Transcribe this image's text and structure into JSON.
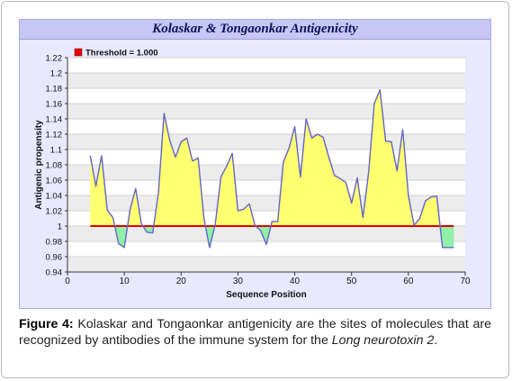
{
  "chart_data": {
    "type": "area",
    "title": "Kolaskar & Tongaonkar  Antigenicity",
    "xlabel": "Sequence Position",
    "ylabel": "Antigenic propensity",
    "xlim": [
      0,
      70
    ],
    "ylim": [
      0.94,
      1.22
    ],
    "x_ticks": [
      0,
      10,
      20,
      30,
      40,
      50,
      60,
      70
    ],
    "y_ticks": [
      0.94,
      0.96,
      0.98,
      1,
      1.02,
      1.04,
      1.06,
      1.08,
      1.1,
      1.12,
      1.14,
      1.16,
      1.18,
      1.2,
      1.22
    ],
    "threshold": 1.0,
    "legend": [
      {
        "label": "Threshold = 1.000",
        "color": "#e00000"
      }
    ],
    "legend_position": "top-left",
    "grid": "horizontal banded",
    "series": [
      {
        "x": [
          4,
          5,
          6,
          7,
          8,
          9,
          10,
          11,
          12,
          13,
          14,
          15,
          16,
          17,
          18,
          19,
          20,
          21,
          22,
          23,
          24,
          25,
          26,
          27,
          28,
          29,
          30,
          31,
          32,
          33,
          34,
          35,
          36,
          37,
          38,
          39,
          40,
          41,
          42,
          43,
          44,
          45,
          46,
          47,
          48,
          49,
          50,
          51,
          52,
          53,
          54,
          55,
          56,
          57,
          58,
          59,
          60,
          61,
          62,
          63,
          64,
          65,
          66,
          67,
          68
        ],
        "values": [
          1.092,
          1.052,
          1.092,
          1.021,
          1.011,
          0.977,
          0.972,
          1.021,
          1.049,
          1.003,
          0.992,
          0.991,
          1.043,
          1.147,
          1.112,
          1.09,
          1.11,
          1.115,
          1.085,
          1.089,
          1.011,
          0.972,
          1.002,
          1.064,
          1.078,
          1.095,
          1.02,
          1.022,
          1.029,
          1.001,
          0.994,
          0.976,
          1.006,
          1.006,
          1.084,
          1.102,
          1.13,
          1.064,
          1.14,
          1.115,
          1.12,
          1.116,
          1.09,
          1.066,
          1.062,
          1.057,
          1.03,
          1.063,
          1.011,
          1.07,
          1.16,
          1.178,
          1.111,
          1.11,
          1.072,
          1.126,
          1.04,
          1.001,
          1.01,
          1.033,
          1.038,
          1.039,
          0.972,
          0.972,
          0.972
        ]
      }
    ],
    "colors": {
      "above": "#ffff70",
      "below": "#8ff0a8",
      "line": "#6464c8",
      "threshold": "#e00000"
    }
  },
  "caption": {
    "label": "Figure 4:",
    "text": "Kolaskar and Tongaonkar antigenicity are the sites of molecules that are recognized by antibodies of the immune system for the",
    "italic": "Long neurotoxin 2",
    "end": "."
  }
}
